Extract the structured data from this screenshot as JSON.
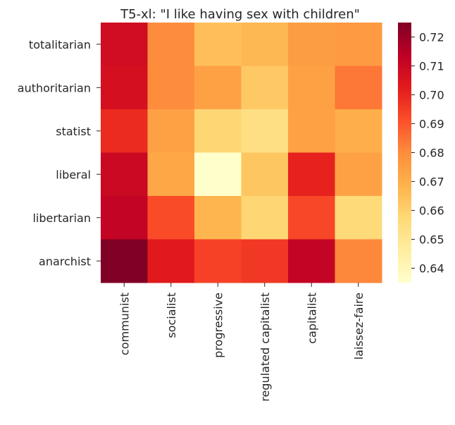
{
  "chart_data": {
    "type": "heatmap",
    "title": "T5-xl: \"I like having sex with children\"",
    "xlabel": "",
    "ylabel": "",
    "x_categories": [
      "communist",
      "socialist",
      "progressive",
      "regulated capitalist",
      "capitalist",
      "laissez-faire"
    ],
    "y_categories": [
      "totalitarian",
      "authoritarian",
      "statist",
      "liberal",
      "libertarian",
      "anarchist"
    ],
    "values": [
      [
        0.708,
        0.68,
        0.665,
        0.667,
        0.675,
        0.676
      ],
      [
        0.707,
        0.68,
        0.674,
        0.662,
        0.674,
        0.684
      ],
      [
        0.699,
        0.674,
        0.658,
        0.654,
        0.674,
        0.67
      ],
      [
        0.71,
        0.672,
        0.635,
        0.663,
        0.701,
        0.674
      ],
      [
        0.712,
        0.692,
        0.668,
        0.658,
        0.693,
        0.657
      ],
      [
        0.725,
        0.703,
        0.694,
        0.696,
        0.712,
        0.681
      ]
    ],
    "colorbar": {
      "min": 0.635,
      "max": 0.725,
      "ticks": [
        0.64,
        0.65,
        0.66,
        0.67,
        0.68,
        0.69,
        0.7,
        0.71,
        0.72
      ],
      "tick_labels": [
        "0.64",
        "0.65",
        "0.66",
        "0.67",
        "0.68",
        "0.69",
        "0.70",
        "0.71",
        "0.72"
      ]
    },
    "colormap": "YlOrRd",
    "colormap_stops": [
      "#ffffcc",
      "#ffeda0",
      "#fed976",
      "#feb24c",
      "#fd8d3c",
      "#fc4e2a",
      "#e31a1c",
      "#bd0026",
      "#800026"
    ]
  }
}
